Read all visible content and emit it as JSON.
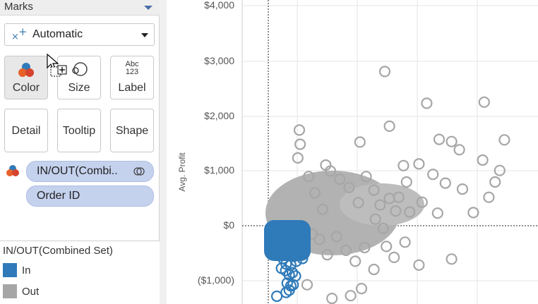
{
  "marks": {
    "title": "Marks",
    "mark_type": "Automatic",
    "mark_type_icon": "automatic-mark-icon",
    "buttons": [
      {
        "id": "color",
        "label": "Color",
        "icon": "color-icon"
      },
      {
        "id": "size",
        "label": "Size",
        "icon": "size-icon"
      },
      {
        "id": "label",
        "label": "Label",
        "icon": "label-icon",
        "icon_text": [
          "Abc",
          "123"
        ]
      },
      {
        "id": "detail",
        "label": "Detail"
      },
      {
        "id": "tooltip",
        "label": "Tooltip"
      },
      {
        "id": "shape",
        "label": "Shape"
      }
    ],
    "fields": [
      {
        "label": "IN/OUT(Combi..",
        "role": "color",
        "icon": "set-icon"
      },
      {
        "label": "Order ID",
        "role": "detail"
      }
    ]
  },
  "legend": {
    "title": "IN/OUT(Combined Set)",
    "items": [
      {
        "label": "In",
        "color": "#2f7ab9"
      },
      {
        "label": "Out",
        "color": "#a6a6a6"
      }
    ]
  },
  "colors": {
    "in": "#2f7ab9",
    "out": "#a6a6a6",
    "pill": "#c5d2ee",
    "grid": "#e6e6e6"
  },
  "chart_data": {
    "type": "scatter",
    "ylabel": "Avg. Profit",
    "yticks": [
      "$4,000",
      "$3,000",
      "$2,000",
      "$1,000",
      "$0",
      "($1,000)"
    ],
    "ylim": [
      -1400,
      4100
    ],
    "grid": true,
    "reference_lines": [
      "y = 0",
      "vertical dotted reference line"
    ],
    "series": [
      {
        "name": "In",
        "color": "#2f7ab9",
        "points": [
          [
            0.8,
            -120
          ],
          [
            0.9,
            -220
          ],
          [
            1.0,
            -300
          ],
          [
            1.1,
            -400
          ],
          [
            1.2,
            -500
          ],
          [
            0.95,
            -600
          ],
          [
            1.05,
            -80
          ],
          [
            1.15,
            -700
          ],
          [
            1.3,
            -350
          ],
          [
            1.4,
            -250
          ],
          [
            1.5,
            -500
          ],
          [
            1.6,
            -420
          ],
          [
            1.7,
            -150
          ],
          [
            1.8,
            -650
          ],
          [
            1.9,
            -300
          ],
          [
            2.0,
            -450
          ],
          [
            2.1,
            -200
          ],
          [
            2.2,
            -600
          ],
          [
            1.25,
            -160
          ],
          [
            1.45,
            -720
          ],
          [
            1.65,
            -560
          ],
          [
            1.85,
            -100
          ],
          [
            2.05,
            -380
          ],
          [
            2.25,
            -270
          ],
          [
            0.85,
            -780
          ],
          [
            1.12,
            -820
          ],
          [
            1.35,
            -900
          ],
          [
            1.55,
            -860
          ],
          [
            1.75,
            -920
          ],
          [
            1.22,
            -1050
          ],
          [
            1.45,
            -1100
          ],
          [
            1.6,
            -1080
          ],
          [
            1.35,
            -1180
          ],
          [
            1.15,
            -1220
          ],
          [
            0.55,
            -1290
          ]
        ]
      },
      {
        "name": "Out",
        "color": "#a6a6a6",
        "points": [
          [
            7.5,
            2820
          ],
          [
            10.2,
            2240
          ],
          [
            13.9,
            2260
          ],
          [
            15.2,
            1570
          ],
          [
            11.0,
            1580
          ],
          [
            11.8,
            1540
          ],
          [
            12.3,
            1390
          ],
          [
            7.8,
            1820
          ],
          [
            5.9,
            1530
          ],
          [
            2.0,
            1750
          ],
          [
            2.05,
            1490
          ],
          [
            1.9,
            1240
          ],
          [
            14.9,
            1010
          ],
          [
            13.8,
            1200
          ],
          [
            14.6,
            800
          ],
          [
            14.2,
            520
          ],
          [
            13.2,
            240
          ],
          [
            9.7,
            1130
          ],
          [
            10.6,
            940
          ],
          [
            11.4,
            780
          ],
          [
            12.5,
            670
          ],
          [
            9.9,
            430
          ],
          [
            10.9,
            230
          ],
          [
            8.7,
            1100
          ],
          [
            8.9,
            800
          ],
          [
            9.1,
            250
          ],
          [
            8.4,
            520
          ],
          [
            3.7,
            1110
          ],
          [
            6.9,
            120
          ],
          [
            7.4,
            -50
          ],
          [
            9.7,
            -720
          ],
          [
            11.8,
            -610
          ],
          [
            3.3,
            -250
          ],
          [
            3.8,
            -530
          ],
          [
            2.5,
            -1080
          ],
          [
            4.1,
            -1330
          ],
          [
            5.3,
            -1280
          ],
          [
            6.0,
            -1150
          ],
          [
            2.6,
            900
          ],
          [
            3.0,
            600
          ],
          [
            3.5,
            300
          ],
          [
            4.0,
            1000
          ],
          [
            4.6,
            850
          ],
          [
            5.2,
            700
          ],
          [
            5.8,
            420
          ],
          [
            6.3,
            900
          ],
          [
            6.8,
            650
          ],
          [
            7.2,
            380
          ],
          [
            7.8,
            500
          ],
          [
            8.2,
            270
          ],
          [
            2.2,
            -350
          ],
          [
            2.8,
            -150
          ],
          [
            4.4,
            -200
          ],
          [
            5.0,
            -450
          ],
          [
            5.6,
            -650
          ],
          [
            6.2,
            -400
          ],
          [
            6.8,
            -800
          ],
          [
            7.6,
            -380
          ],
          [
            8.1,
            -580
          ],
          [
            8.8,
            -300
          ]
        ]
      }
    ]
  }
}
